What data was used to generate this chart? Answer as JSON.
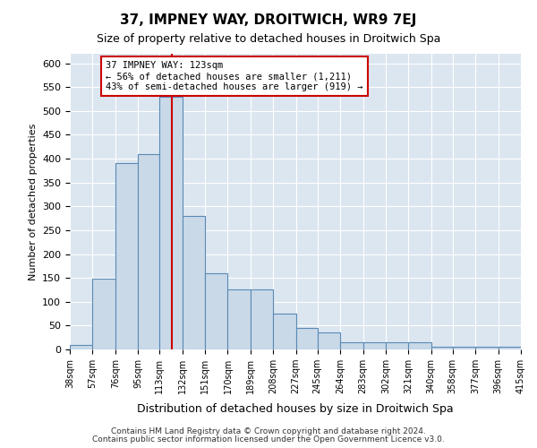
{
  "title": "37, IMPNEY WAY, DROITWICH, WR9 7EJ",
  "subtitle": "Size of property relative to detached houses in Droitwich Spa",
  "xlabel": "Distribution of detached houses by size in Droitwich Spa",
  "ylabel": "Number of detached properties",
  "footer_line1": "Contains HM Land Registry data © Crown copyright and database right 2024.",
  "footer_line2": "Contains public sector information licensed under the Open Government Licence v3.0.",
  "annotation_line1": "37 IMPNEY WAY: 123sqm",
  "annotation_line2": "← 56% of detached houses are smaller (1,211)",
  "annotation_line3": "43% of semi-detached houses are larger (919) →",
  "property_size": 123,
  "bar_edges": [
    38,
    57,
    76,
    95,
    113,
    132,
    151,
    170,
    189,
    208,
    227,
    245,
    264,
    283,
    302,
    321,
    340,
    358,
    377,
    396,
    415
  ],
  "bar_heights": [
    10,
    148,
    390,
    410,
    530,
    280,
    160,
    125,
    125,
    75,
    45,
    35,
    15,
    15,
    15,
    15,
    5,
    5,
    5,
    5
  ],
  "bar_color": "#c9d9e8",
  "bar_edge_color": "#5a8ab5",
  "red_line_color": "#cc0000",
  "annotation_box_color": "#cc0000",
  "background_color": "#dce6f0",
  "ylim": [
    0,
    620
  ],
  "yticks": [
    0,
    50,
    100,
    150,
    200,
    250,
    300,
    350,
    400,
    450,
    500,
    550,
    600
  ]
}
